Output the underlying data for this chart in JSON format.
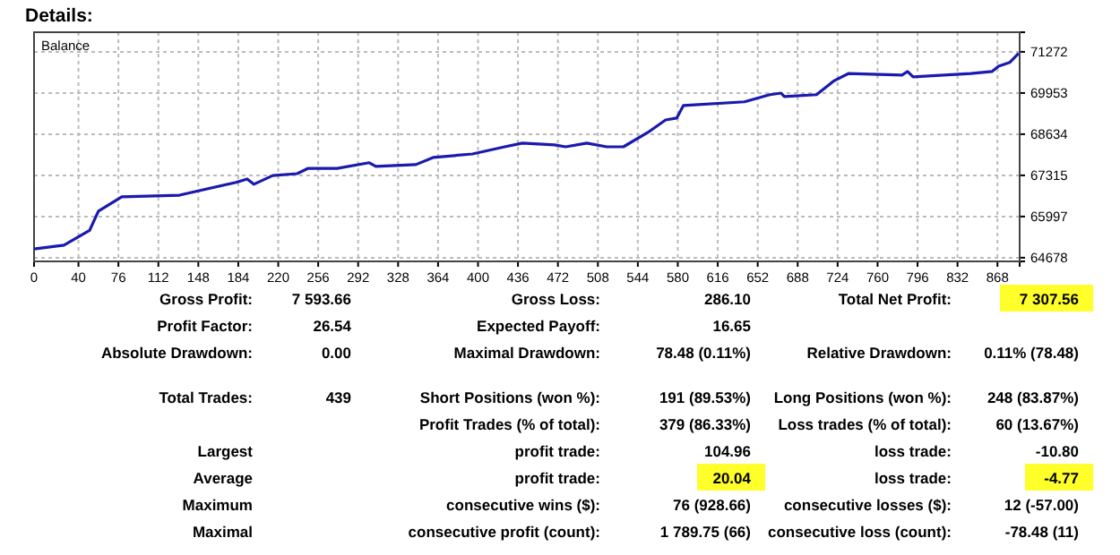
{
  "chart_data": [
    {
      "type": "line",
      "title": "Details:",
      "xlim": [
        0,
        888
      ],
      "ylim": [
        64560,
        71900
      ],
      "xticks": [
        0,
        40,
        76,
        112,
        148,
        184,
        220,
        256,
        292,
        328,
        364,
        400,
        436,
        472,
        508,
        544,
        580,
        616,
        652,
        688,
        724,
        760,
        796,
        832,
        868
      ],
      "yticks": [
        64678,
        65997,
        67315,
        68634,
        69953,
        71272
      ],
      "grid": true,
      "line_style": "solid",
      "marker": "none",
      "series": [
        {
          "name": "Balance",
          "color": "#1a1aae",
          "x": [
            0,
            27,
            50,
            58,
            79,
            131,
            182,
            192,
            198,
            215,
            237,
            247,
            273,
            302,
            308,
            344,
            360,
            395,
            424,
            440,
            469,
            479,
            498,
            516,
            531,
            553,
            569,
            579,
            585,
            640,
            663,
            673,
            676,
            705,
            721,
            734,
            782,
            787,
            792,
            844,
            863,
            869,
            879,
            887
          ],
          "values": [
            64960,
            65080,
            65550,
            66170,
            66630,
            66680,
            67090,
            67200,
            67030,
            67310,
            67370,
            67540,
            67540,
            67720,
            67600,
            67660,
            67890,
            68000,
            68230,
            68350,
            68290,
            68230,
            68350,
            68230,
            68230,
            68690,
            69090,
            69150,
            69550,
            69670,
            69900,
            69950,
            69840,
            69900,
            70350,
            70580,
            70530,
            70640,
            70470,
            70580,
            70640,
            70810,
            70930,
            71220
          ]
        }
      ]
    },
    {
      "type": "other",
      "annotations": [
        "Gross Profit:",
        "7 593.66",
        "Gross Loss:",
        "286.10",
        "Total Net Profit:",
        "7 307.56",
        "Profit Factor:",
        "26.54",
        "Expected Payoff:",
        "16.65",
        "Absolute Drawdown:",
        "0.00",
        "Maximal Drawdown:",
        "78.48 (0.11%)",
        "Relative Drawdown:",
        "0.11% (78.48)",
        "Total Trades:",
        "439",
        "Short Positions (won %):",
        "191 (89.53%)",
        "Long Positions (won %):",
        "248 (83.87%)",
        "Profit Trades (% of total):",
        "379 (86.33%)",
        "Loss trades (% of total):",
        "60 (13.67%)",
        "Largest",
        "profit trade:",
        "104.96",
        "loss trade:",
        "-10.80",
        "Average",
        "profit trade:",
        "20.04",
        "loss trade:",
        "-4.77",
        "Maximum",
        "consecutive wins ($):",
        "76 (928.66)",
        "consecutive losses ($):",
        "12 (-57.00)",
        "Maximal",
        "consecutive profit (count):",
        "1 789.75 (66)",
        "consecutive loss (count):",
        "-78.48 (11)"
      ]
    }
  ]
}
